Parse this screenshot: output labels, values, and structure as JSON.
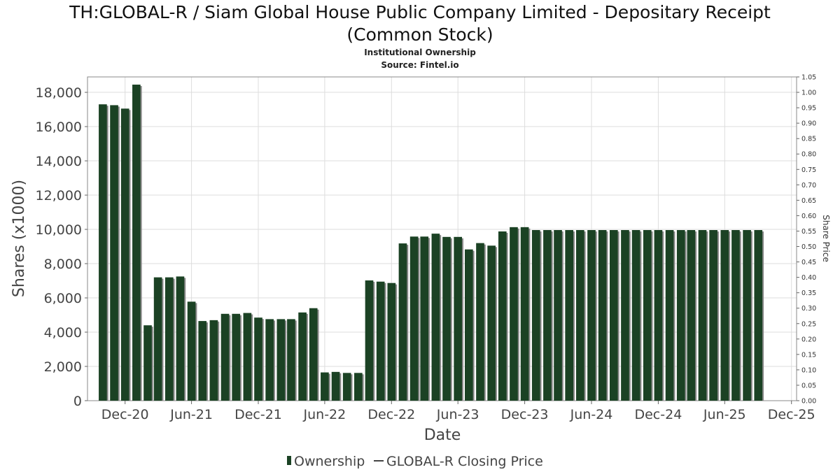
{
  "header": {
    "title_line1": "TH:GLOBAL-R / Siam Global House Public Company Limited - Depositary Receipt",
    "title_line2": "(Common Stock)",
    "subtitle": "Institutional Ownership",
    "source": "Source: Fintel.io"
  },
  "colors": {
    "bar": "#1b4224",
    "bar_shadow": "#8a8a8a",
    "grid": "#dddddd"
  },
  "chart_data": {
    "type": "bar",
    "title": "TH:GLOBAL-R / Siam Global House Public Company Limited - Depositary Receipt (Common Stock)",
    "subtitle": "Institutional Ownership",
    "xlabel": "Date",
    "ylabel": "Shares (x1000)",
    "y2label": "Share Price",
    "ylim": [
      0,
      18900
    ],
    "y2lim": [
      0,
      1.05
    ],
    "xlim": [
      "2020-08-20",
      "2025-12-15"
    ],
    "yticks": [
      0,
      2000,
      4000,
      6000,
      8000,
      10000,
      12000,
      14000,
      16000,
      18000
    ],
    "ytick_labels": [
      "0",
      "2,000",
      "4,000",
      "6,000",
      "8,000",
      "10,000",
      "12,000",
      "14,000",
      "16,000",
      "18,000"
    ],
    "y2ticks": [
      "0.00",
      "0.05",
      "0.10",
      "0.15",
      "0.20",
      "0.25",
      "0.30",
      "0.35",
      "0.40",
      "0.45",
      "0.50",
      "0.55",
      "0.60",
      "0.65",
      "0.70",
      "0.75",
      "0.80",
      "0.85",
      "0.90",
      "0.95",
      "1.00",
      "1.05"
    ],
    "xticks": [
      {
        "label": "Dec-20",
        "date": "2020-12-01"
      },
      {
        "label": "Jun-21",
        "date": "2021-06-01"
      },
      {
        "label": "Dec-21",
        "date": "2021-12-01"
      },
      {
        "label": "Jun-22",
        "date": "2022-06-01"
      },
      {
        "label": "Dec-22",
        "date": "2022-12-01"
      },
      {
        "label": "Jun-23",
        "date": "2023-06-01"
      },
      {
        "label": "Dec-23",
        "date": "2023-12-01"
      },
      {
        "label": "Jun-24",
        "date": "2024-06-01"
      },
      {
        "label": "Dec-24",
        "date": "2024-12-01"
      },
      {
        "label": "Jun-25",
        "date": "2025-06-01"
      },
      {
        "label": "Dec-25",
        "date": "2025-12-01"
      }
    ],
    "grid": true,
    "legend_position": "bottom-center",
    "series": [
      {
        "name": "Ownership",
        "type": "bar",
        "points": [
          {
            "x": "2020-10-01",
            "y": 17300
          },
          {
            "x": "2020-11-01",
            "y": 17250
          },
          {
            "x": "2020-12-01",
            "y": 17050
          },
          {
            "x": "2021-01-01",
            "y": 18450
          },
          {
            "x": "2021-02-01",
            "y": 4400
          },
          {
            "x": "2021-03-01",
            "y": 7200
          },
          {
            "x": "2021-04-01",
            "y": 7200
          },
          {
            "x": "2021-05-01",
            "y": 7250
          },
          {
            "x": "2021-06-01",
            "y": 5780
          },
          {
            "x": "2021-07-01",
            "y": 4650
          },
          {
            "x": "2021-08-01",
            "y": 4700
          },
          {
            "x": "2021-09-01",
            "y": 5070
          },
          {
            "x": "2021-10-01",
            "y": 5070
          },
          {
            "x": "2021-11-01",
            "y": 5120
          },
          {
            "x": "2021-12-01",
            "y": 4850
          },
          {
            "x": "2022-01-01",
            "y": 4760
          },
          {
            "x": "2022-02-01",
            "y": 4760
          },
          {
            "x": "2022-03-01",
            "y": 4760
          },
          {
            "x": "2022-04-01",
            "y": 5150
          },
          {
            "x": "2022-05-01",
            "y": 5400
          },
          {
            "x": "2022-06-01",
            "y": 1650
          },
          {
            "x": "2022-07-01",
            "y": 1680
          },
          {
            "x": "2022-08-01",
            "y": 1620
          },
          {
            "x": "2022-09-01",
            "y": 1620
          },
          {
            "x": "2022-10-01",
            "y": 7020
          },
          {
            "x": "2022-11-01",
            "y": 6950
          },
          {
            "x": "2022-12-01",
            "y": 6870
          },
          {
            "x": "2023-01-01",
            "y": 9180
          },
          {
            "x": "2023-02-01",
            "y": 9580
          },
          {
            "x": "2023-03-01",
            "y": 9580
          },
          {
            "x": "2023-04-01",
            "y": 9750
          },
          {
            "x": "2023-05-01",
            "y": 9560
          },
          {
            "x": "2023-06-01",
            "y": 9560
          },
          {
            "x": "2023-07-01",
            "y": 8830
          },
          {
            "x": "2023-08-01",
            "y": 9200
          },
          {
            "x": "2023-09-01",
            "y": 9050
          },
          {
            "x": "2023-10-01",
            "y": 9880
          },
          {
            "x": "2023-11-01",
            "y": 10130
          },
          {
            "x": "2023-12-01",
            "y": 10130
          },
          {
            "x": "2024-01-01",
            "y": 9960
          },
          {
            "x": "2024-02-01",
            "y": 9960
          },
          {
            "x": "2024-03-01",
            "y": 9960
          },
          {
            "x": "2024-04-01",
            "y": 9960
          },
          {
            "x": "2024-05-01",
            "y": 9960
          },
          {
            "x": "2024-06-01",
            "y": 9960
          },
          {
            "x": "2024-07-01",
            "y": 9960
          },
          {
            "x": "2024-08-01",
            "y": 9960
          },
          {
            "x": "2024-09-01",
            "y": 9960
          },
          {
            "x": "2024-10-01",
            "y": 9960
          },
          {
            "x": "2024-11-01",
            "y": 9960
          },
          {
            "x": "2024-12-01",
            "y": 9960
          },
          {
            "x": "2025-01-01",
            "y": 9960
          },
          {
            "x": "2025-02-01",
            "y": 9960
          },
          {
            "x": "2025-03-01",
            "y": 9960
          },
          {
            "x": "2025-04-01",
            "y": 9960
          },
          {
            "x": "2025-05-01",
            "y": 9960
          },
          {
            "x": "2025-06-01",
            "y": 9960
          },
          {
            "x": "2025-07-01",
            "y": 9960
          },
          {
            "x": "2025-08-01",
            "y": 9960
          },
          {
            "x": "2025-09-01",
            "y": 9960
          }
        ]
      },
      {
        "name": "GLOBAL-R Closing Price",
        "type": "line",
        "points": []
      }
    ]
  },
  "legend": {
    "ownership_label": "Ownership",
    "price_label": "GLOBAL-R Closing Price"
  }
}
